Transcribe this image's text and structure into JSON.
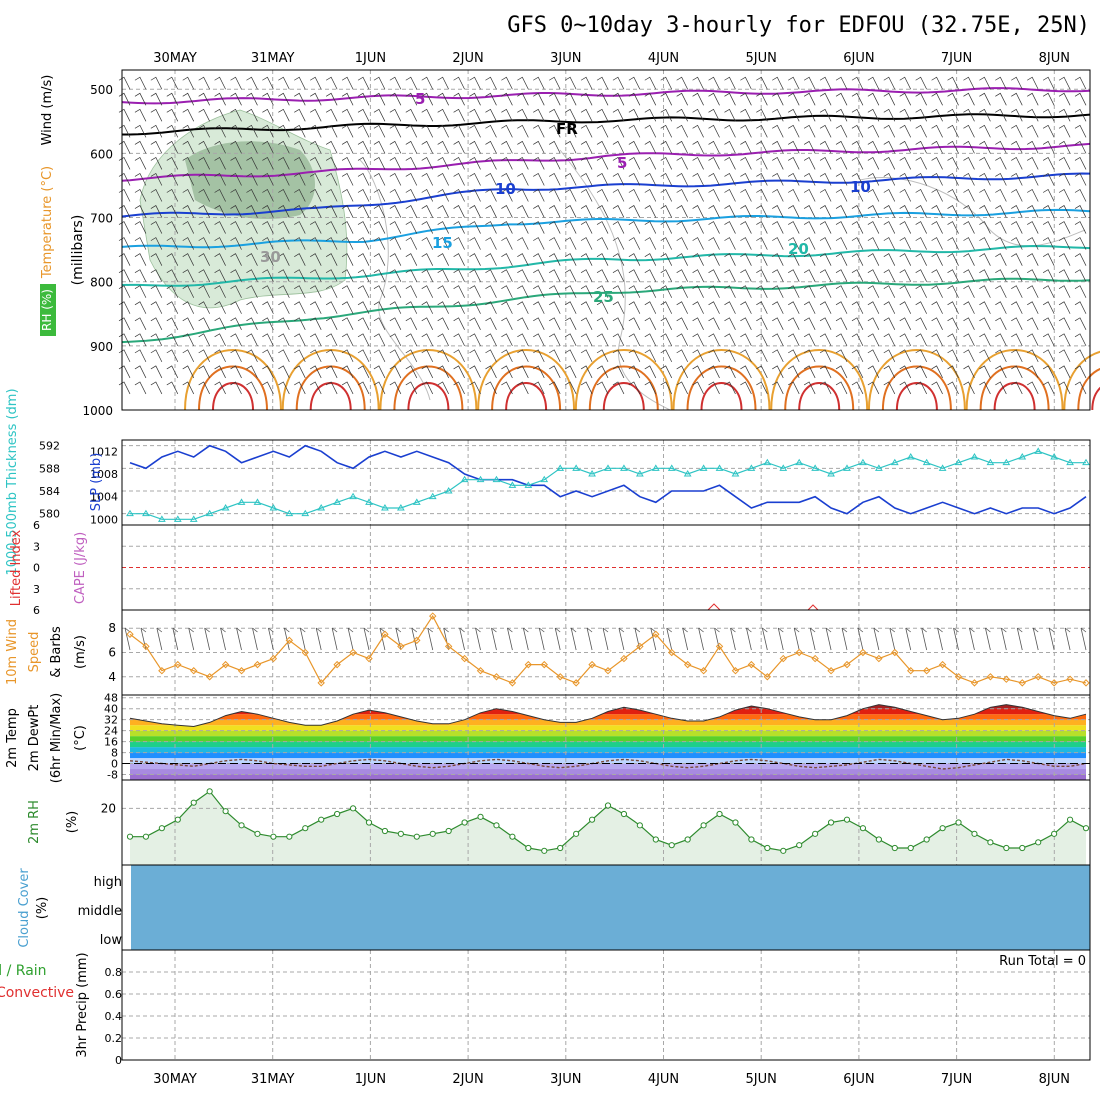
{
  "title": "GFS 0~10day 3-hourly for EDFOU (32.75E, 25N)",
  "colors": {
    "grid": "#a8a8a8",
    "rh_fill_light": "#d8ead8",
    "rh_fill_dark": "#8fb08f",
    "thickness": "#2ec4c4",
    "slp": "#1a3fd0",
    "lifted_zero": "#e03030",
    "wind_speed": "#e8962a",
    "rh2m": "#2e8b2e",
    "rh2m_fill": "#e4f0e4",
    "cloud": "#6baed6"
  },
  "chart_data": [
    {
      "id": "upper-air",
      "type": "contour",
      "x_ticks": [
        "30MAY",
        "31MAY",
        "1JUN",
        "2JUN",
        "3JUN",
        "4JUN",
        "5JUN",
        "6JUN",
        "7JUN",
        "8JUN"
      ],
      "ylabel_parts": [
        "RH (%)",
        "Temperature (°C)",
        "Wind (m/s)"
      ],
      "ylabel_units": "(millibars)",
      "y_ticks": [
        500,
        600,
        700,
        800,
        900,
        1000
      ],
      "ylim": [
        470,
        1000
      ],
      "isotherms": [
        {
          "label": "-5",
          "shown": "5",
          "color": "#9a1fb0",
          "p": [
            [
              0,
              520
            ],
            [
              0.3,
              512
            ],
            [
              0.6,
              505
            ],
            [
              1,
              500
            ]
          ]
        },
        {
          "label": "FR",
          "color": "#000000",
          "p": [
            [
              0,
              568
            ],
            [
              0.25,
              557
            ],
            [
              0.5,
              548
            ],
            [
              1,
              540
            ]
          ]
        },
        {
          "label": "5",
          "color": "#9a1fb0",
          "p": [
            [
              0,
              640
            ],
            [
              0.2,
              630
            ],
            [
              0.5,
              604
            ],
            [
              1,
              588
            ]
          ]
        },
        {
          "label": "10",
          "color": "#1a3fd0",
          "p": [
            [
              0,
              698
            ],
            [
              0.2,
              688
            ],
            [
              0.4,
              655
            ],
            [
              1,
              634
            ]
          ]
        },
        {
          "label": "15",
          "color": "#1aa0e0",
          "p": [
            [
              0,
              748
            ],
            [
              0.25,
              735
            ],
            [
              0.4,
              708
            ],
            [
              1,
              690
            ]
          ]
        },
        {
          "label": "20",
          "color": "#22b8a8",
          "p": [
            [
              0,
              808
            ],
            [
              0.25,
              790
            ],
            [
              0.5,
              765
            ],
            [
              1,
              745
            ]
          ]
        },
        {
          "label": "25",
          "color": "#2aa87a",
          "p": [
            [
              0,
              895
            ],
            [
              0.2,
              855
            ],
            [
              0.5,
              815
            ],
            [
              1,
              795
            ]
          ]
        }
      ],
      "contour_labels": [
        "5",
        "FR",
        "5",
        "10",
        "15",
        "20",
        "25",
        "30",
        "10"
      ]
    },
    {
      "id": "slp-thickness",
      "type": "line",
      "ylabel_left": "1000-500mb Thickness (dm)",
      "ylabel_right": "SLP (mb)",
      "y_ticks_left": [
        580,
        584,
        588,
        592
      ],
      "y_ticks_right": [
        1000,
        1004,
        1008,
        1012
      ],
      "series": [
        {
          "name": "SLP (mb)",
          "values": [
            1010,
            1009,
            1011,
            1012,
            1011,
            1013,
            1012,
            1010,
            1011,
            1012,
            1011,
            1013,
            1012,
            1010,
            1009,
            1011,
            1012,
            1011,
            1012,
            1011,
            1010,
            1008,
            1007,
            1007,
            1007,
            1006,
            1006,
            1004,
            1005,
            1004,
            1005,
            1006,
            1004,
            1003,
            1005,
            1005,
            1005,
            1006,
            1004,
            1002,
            1003,
            1003,
            1003,
            1004,
            1002,
            1001,
            1003,
            1004,
            1002,
            1001,
            1002,
            1003,
            1002,
            1001,
            1002,
            1001,
            1002,
            1002,
            1001,
            1002,
            1004
          ]
        },
        {
          "name": "1000-500mb Thickness (dm)",
          "values": [
            580,
            580,
            579,
            579,
            579,
            580,
            581,
            582,
            582,
            581,
            580,
            580,
            581,
            582,
            583,
            582,
            581,
            581,
            582,
            583,
            584,
            586,
            586,
            586,
            585,
            585,
            586,
            588,
            588,
            587,
            588,
            588,
            587,
            588,
            588,
            587,
            588,
            588,
            587,
            588,
            589,
            588,
            589,
            588,
            587,
            588,
            589,
            588,
            589,
            590,
            589,
            588,
            589,
            590,
            589,
            589,
            590,
            591,
            590,
            589,
            589
          ]
        }
      ]
    },
    {
      "id": "lifted-cape",
      "type": "line",
      "ylabel_left": "Lifted Index",
      "ylabel_right": "CAPE (J/kg)",
      "y_ticks": [
        -6,
        -3,
        0,
        3,
        6
      ],
      "y_tick_labels": [
        "6",
        "3",
        "0",
        "3",
        "6"
      ]
    },
    {
      "id": "wind10m",
      "type": "line",
      "ylabel": "10m Wind Speed & Barbs (m/s)",
      "ylabel_parts": [
        "10m Wind",
        "Speed",
        "& Barbs"
      ],
      "ylabel_units": "(m/s)",
      "y_ticks": [
        4,
        6,
        8
      ],
      "ylim": [
        2.5,
        9.5
      ],
      "series": [
        {
          "name": "10m Wind Speed",
          "values": [
            7.5,
            6.5,
            4.5,
            5,
            4.5,
            4,
            5,
            4.5,
            5,
            5.5,
            7,
            6,
            3.5,
            5,
            6,
            5.5,
            7.5,
            6.5,
            7,
            9,
            6.5,
            5.5,
            4.5,
            4,
            3.5,
            5,
            5,
            4,
            3.5,
            5,
            4.5,
            5.5,
            6.5,
            7.5,
            6,
            5,
            4.5,
            6.5,
            4.5,
            5,
            4,
            5.5,
            6,
            5.5,
            4.5,
            5,
            6,
            5.5,
            6,
            4.5,
            4.5,
            5,
            4,
            3.5,
            4,
            3.8,
            3.5,
            4,
            3.5,
            3.8,
            3.5
          ]
        }
      ]
    },
    {
      "id": "temp2m",
      "type": "area",
      "ylabel_parts": [
        "2m Temp",
        "2m DewPt",
        "(6hr Min/Max)"
      ],
      "ylabel_units": "(°C)",
      "y_ticks": [
        -8,
        0,
        8,
        16,
        24,
        32,
        40,
        48
      ],
      "y_tick_labels": [
        "-8",
        "0",
        "8",
        "16",
        "24",
        "32",
        "40",
        "48"
      ],
      "series": [
        {
          "name": "2m Temp",
          "values": [
            33,
            31,
            29,
            28,
            27,
            30,
            35,
            38,
            36,
            33,
            30,
            28,
            28,
            31,
            36,
            39,
            37,
            34,
            31,
            29,
            29,
            32,
            37,
            40,
            38,
            35,
            32,
            30,
            30,
            33,
            38,
            41,
            39,
            36,
            33,
            31,
            31,
            34,
            39,
            42,
            40,
            37,
            34,
            32,
            32,
            35,
            40,
            43,
            41,
            38,
            35,
            32,
            33,
            36,
            41,
            43,
            41,
            38,
            35,
            33,
            36
          ]
        },
        {
          "name": "2m DewPt",
          "values": [
            2,
            1,
            0,
            -1,
            -2,
            0,
            2,
            3,
            2,
            0,
            -1,
            -2,
            -2,
            0,
            2,
            3,
            2,
            0,
            -2,
            -3,
            -2,
            0,
            2,
            3,
            2,
            0,
            -2,
            -3,
            -2,
            0,
            2,
            3,
            2,
            0,
            -2,
            -3,
            -2,
            0,
            2,
            3,
            2,
            0,
            -2,
            -3,
            -2,
            -1,
            1,
            3,
            2,
            0,
            -2,
            -4,
            -3,
            -1,
            1,
            3,
            2,
            0,
            -2,
            -2,
            0
          ]
        }
      ]
    },
    {
      "id": "rh2m",
      "type": "area",
      "ylabel": "2m RH",
      "ylabel_units": "(%)",
      "y_ticks": [
        20
      ],
      "ylim": [
        0,
        30
      ],
      "series": [
        {
          "name": "2m RH",
          "values": [
            10,
            10,
            13,
            16,
            22,
            26,
            19,
            14,
            11,
            10,
            10,
            13,
            16,
            18,
            20,
            15,
            12,
            11,
            10,
            11,
            12,
            15,
            17,
            14,
            10,
            6,
            5,
            6,
            11,
            16,
            21,
            18,
            14,
            9,
            7,
            9,
            14,
            18,
            15,
            9,
            6,
            5,
            7,
            11,
            15,
            16,
            13,
            9,
            6,
            6,
            9,
            13,
            15,
            11,
            8,
            6,
            6,
            8,
            11,
            16,
            13
          ]
        }
      ]
    },
    {
      "id": "cloud",
      "type": "area",
      "ylabel": "Cloud Cover",
      "ylabel_units": "(%)",
      "y_tick_labels": [
        "high",
        "middle",
        "low"
      ]
    },
    {
      "id": "precip",
      "type": "bar",
      "ylabel_left_parts": [
        "Total / Rain",
        "Convective"
      ],
      "ylabel": "3hr Precip (mm)",
      "y_ticks": [
        0,
        0.2,
        0.4,
        0.6,
        0.8
      ],
      "y_tick_labels": [
        "0",
        "0.2",
        "0.4",
        "0.6",
        "0.8"
      ],
      "ylim": [
        0,
        1
      ],
      "annotation": "Run Total = 0",
      "values": []
    }
  ]
}
